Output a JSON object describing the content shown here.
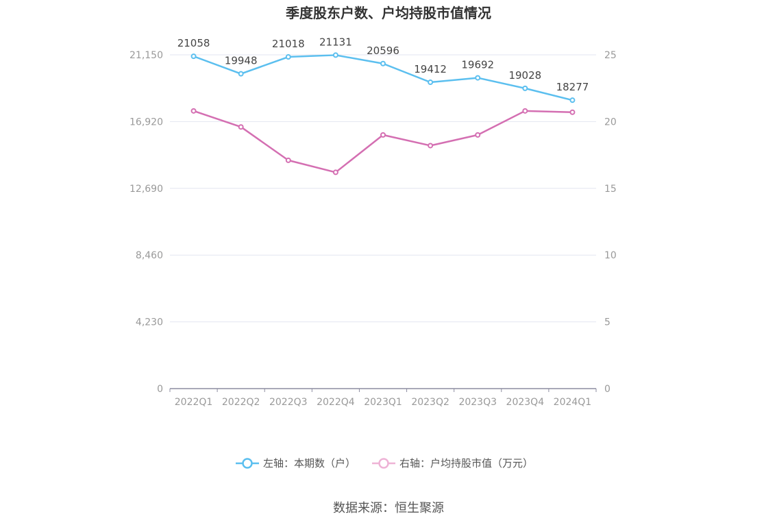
{
  "chart_data": {
    "type": "line",
    "title": "季度股东户数、户均持股市值情况",
    "categories": [
      "2022Q1",
      "2022Q2",
      "2022Q3",
      "2022Q4",
      "2023Q1",
      "2023Q2",
      "2023Q3",
      "2023Q4",
      "2024Q1"
    ],
    "series": [
      {
        "name": "左轴：本期数（户）",
        "axis": "left",
        "color": "#5bbfef",
        "values": [
          21058,
          19948,
          21018,
          21131,
          20596,
          19412,
          19692,
          19028,
          18277
        ],
        "labels": [
          "21058",
          "19948",
          "21018",
          "21131",
          "20596",
          "19412",
          "19692",
          "19028",
          "18277"
        ]
      },
      {
        "name": "右轴：户均持股市值（万元）",
        "axis": "right",
        "color": "#d46fb2",
        "legend_color": "#eeb3d6",
        "values": [
          20.8,
          19.6,
          17.1,
          16.2,
          19.0,
          18.2,
          19.0,
          20.8,
          20.7
        ]
      }
    ],
    "y_left": {
      "min": 0,
      "max": 21150,
      "ticks": [
        0,
        4230,
        8460,
        12690,
        16920,
        21150
      ],
      "tick_labels": [
        "0",
        "4,230",
        "8,460",
        "12,690",
        "16,920",
        "21,150"
      ]
    },
    "y_right": {
      "min": 0,
      "max": 25,
      "ticks": [
        0,
        5,
        10,
        15,
        20,
        25
      ],
      "tick_labels": [
        "0",
        "5",
        "10",
        "15",
        "20",
        "25"
      ]
    },
    "grid": true,
    "legend_position": "bottom"
  },
  "source": "数据来源：恒生聚源"
}
